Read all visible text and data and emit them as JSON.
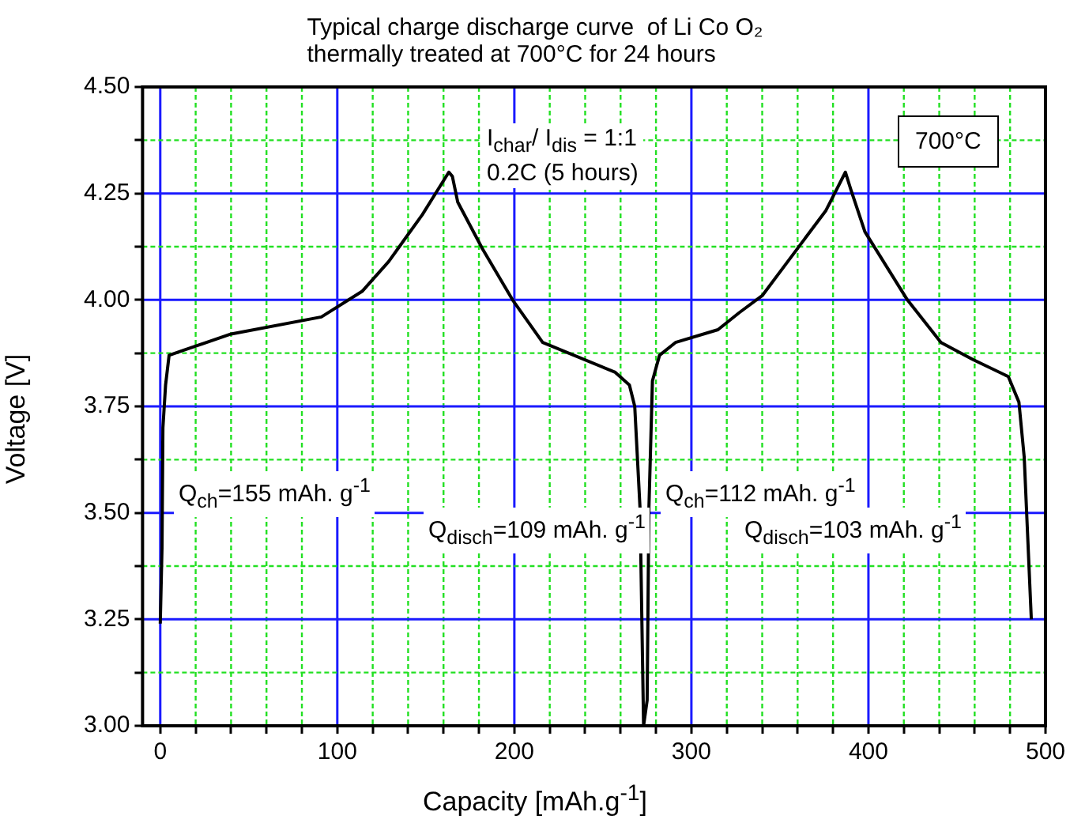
{
  "chart_data": {
    "type": "line",
    "title": "Typical charge discharge curve  of Li Co O₂\nthermally treated at 700°C for 24 hours",
    "xlabel": "Capacity [mAh.g$^{-1}$]",
    "ylabel": "Voltage [V]",
    "annotations": [
      "I$_{char}$/ I$_{dis}$ = 1:1\n0.2C (5 hours)",
      "700°C",
      "Q$_{ch}$=155 mAh. g$^{-1}$",
      "Q$_{disch}$=109 mAh. g$^{-1}$",
      "Q$_{ch}$=112 mAh. g$^{-1}$",
      "Q$_{disch}$=103 mAh. g$^{-1}$"
    ],
    "x": [
      0,
      1,
      1.5,
      3,
      5,
      12,
      40,
      91,
      114,
      129,
      148,
      163,
      165,
      168,
      182,
      199,
      216,
      257,
      265,
      268,
      271,
      273,
      275,
      276,
      278,
      282,
      291,
      315,
      327,
      340,
      358,
      376,
      387,
      390,
      398,
      422,
      441,
      459,
      479,
      485,
      488,
      492
    ],
    "series": [
      {
        "color": "#000000",
        "values": [
          3.24,
          3.42,
          3.7,
          3.8,
          3.87,
          3.88,
          3.92,
          3.96,
          4.02,
          4.09,
          4.2,
          4.3,
          4.29,
          4.23,
          4.12,
          4.0,
          3.9,
          3.83,
          3.8,
          3.75,
          3.51,
          3.0,
          3.06,
          3.51,
          3.81,
          3.87,
          3.9,
          3.93,
          3.97,
          4.01,
          4.11,
          4.21,
          4.3,
          4.26,
          4.16,
          4.0,
          3.9,
          3.86,
          3.82,
          3.76,
          3.63,
          3.25
        ]
      }
    ],
    "xlim": [
      -10,
      500
    ],
    "ylim": [
      3,
      4.5
    ],
    "xticks": [
      0,
      {
        "value": 20,
        "label": null
      },
      {
        "value": 40,
        "label": null
      },
      {
        "value": 60,
        "label": null
      },
      {
        "value": 80,
        "label": null
      },
      100,
      {
        "value": 120,
        "label": null
      },
      {
        "value": 140,
        "label": null
      },
      {
        "value": 160,
        "label": null
      },
      {
        "value": 180,
        "label": null
      },
      200,
      {
        "value": 220,
        "label": null
      },
      {
        "value": 240,
        "label": null
      },
      {
        "value": 260,
        "label": null
      },
      {
        "value": 280,
        "label": null
      },
      300,
      {
        "value": 320,
        "label": null
      },
      {
        "value": 340,
        "label": null
      },
      {
        "value": 360,
        "label": null
      },
      {
        "value": 380,
        "label": null
      },
      400,
      {
        "value": 420,
        "label": null
      },
      {
        "value": 440,
        "label": null
      },
      {
        "value": 460,
        "label": null
      },
      {
        "value": 480,
        "label": null
      },
      500
    ],
    "yticks": [
      {
        "value": 3,
        "label": "3.00"
      },
      {
        "value": 3.125,
        "label": null
      },
      {
        "value": 3.25,
        "label": "3.25"
      },
      {
        "value": 3.375,
        "label": null
      },
      {
        "value": 3.5,
        "label": "3.50"
      },
      {
        "value": 3.625,
        "label": null
      },
      {
        "value": 3.75,
        "label": "3.75"
      },
      {
        "value": 3.875,
        "label": null
      },
      {
        "value": 4,
        "label": "4.00"
      },
      {
        "value": 4.125,
        "label": null
      },
      {
        "value": 4.25,
        "label": "4.25"
      },
      {
        "value": 4.375,
        "label": null
      },
      {
        "value": 4.5,
        "label": "4.50"
      }
    ],
    "grid": true,
    "legend": false,
    "marker": "none",
    "line_style": "solid"
  }
}
